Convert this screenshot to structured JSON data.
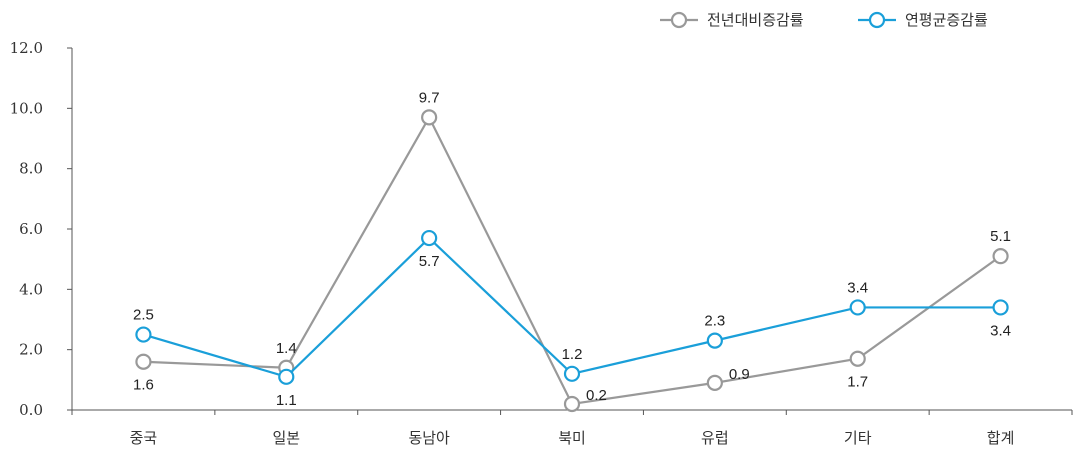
{
  "chart_data": {
    "type": "line",
    "categories": [
      "중국",
      "일본",
      "동남아",
      "북미",
      "유럽",
      "기타",
      "합계"
    ],
    "series": [
      {
        "name": "전년대비증감률",
        "color": "#999999",
        "values": [
          1.6,
          1.4,
          9.7,
          0.2,
          0.9,
          1.7,
          5.1
        ],
        "value_labels": [
          "1.6",
          "1.4",
          "9.7",
          "0.2",
          "0.9",
          "1.7",
          "5.1"
        ],
        "label_pos": [
          "below",
          "above",
          "above",
          "right",
          "right",
          "below",
          "above"
        ]
      },
      {
        "name": "연평균증감률",
        "color": "#1a9fd9",
        "values": [
          2.5,
          1.1,
          5.7,
          1.2,
          2.3,
          3.4,
          3.4
        ],
        "value_labels": [
          "2.5",
          "1.1",
          "5.7",
          "1.2",
          "2.3",
          "3.4",
          "3.4"
        ],
        "label_pos": [
          "above",
          "below",
          "below",
          "above",
          "above",
          "above",
          "below"
        ]
      }
    ],
    "ylim": [
      0,
      12
    ],
    "yticks": [
      "0.0",
      "2.0",
      "4.0",
      "6.0",
      "8.0",
      "10.0",
      "12.0"
    ],
    "grid": false,
    "legend_position": "top-right"
  }
}
